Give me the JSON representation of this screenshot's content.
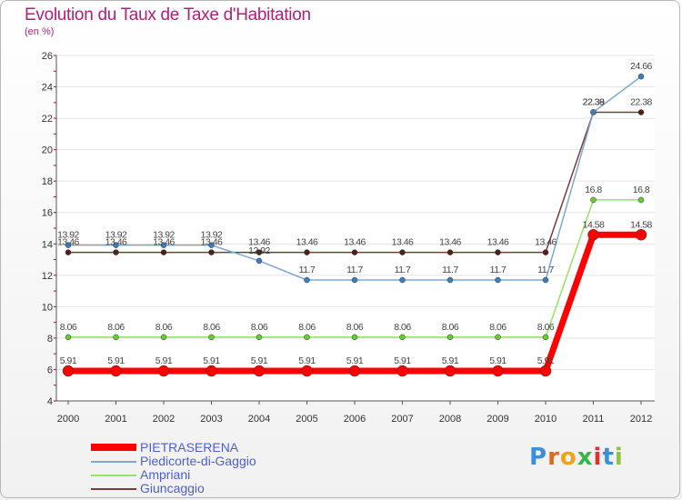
{
  "title": "Evolution du Taux de Taxe d'Habitation",
  "subtitle": "(en %)",
  "brand": [
    "P",
    "r",
    "o",
    "x",
    "i",
    "t",
    "i"
  ],
  "brand_colors": [
    "#3a8fd8",
    "#e06a1f",
    "#f2a31a",
    "#3bb54a",
    "#e0312e",
    "#3a8fd8",
    "#8bc53f"
  ],
  "chart_data": {
    "type": "line",
    "title": "Evolution du Taux de Taxe d'Habitation",
    "ylabel": "(en %)",
    "ylim": [
      4,
      26
    ],
    "yticks": [
      4,
      6,
      8,
      10,
      12,
      14,
      16,
      18,
      20,
      22,
      24,
      26
    ],
    "categories": [
      "2000",
      "2001",
      "2002",
      "2003",
      "2004",
      "2005",
      "2006",
      "2007",
      "2008",
      "2009",
      "2010",
      "2011",
      "2012"
    ],
    "series": [
      {
        "name": "PIETRASERENA",
        "color": "#ff0000",
        "values": [
          5.91,
          5.91,
          5.91,
          5.91,
          5.91,
          5.91,
          5.91,
          5.91,
          5.91,
          5.91,
          5.91,
          14.58,
          14.58
        ],
        "labels": [
          "5.91",
          "5.91",
          "5.91",
          "5.91",
          "5.91",
          "5.91",
          "5.91",
          "5.91",
          "5.91",
          "5.91",
          "5.91",
          "14.58",
          "14.58"
        ]
      },
      {
        "name": "Piedicorte-di-Gaggio",
        "color": "#7fa8d0",
        "values": [
          13.92,
          13.92,
          13.92,
          13.92,
          12.92,
          11.7,
          11.7,
          11.7,
          11.7,
          11.7,
          11.7,
          22.39,
          24.66
        ],
        "labels": [
          "13.92",
          "13.92",
          "13.92",
          "13.92",
          "12.92",
          "11.7",
          "11.7",
          "11.7",
          "11.7",
          "11.7",
          "11.7",
          "22.39",
          "24.66"
        ]
      },
      {
        "name": "Ampriani",
        "color": "#99e066",
        "values": [
          8.06,
          8.06,
          8.06,
          8.06,
          8.06,
          8.06,
          8.06,
          8.06,
          8.06,
          8.06,
          8.06,
          16.8,
          16.8
        ],
        "labels": [
          "8.06",
          "8.06",
          "8.06",
          "8.06",
          "8.06",
          "8.06",
          "8.06",
          "8.06",
          "8.06",
          "8.06",
          "8.06",
          "16.8",
          "16.8"
        ]
      },
      {
        "name": "Giuncaggio",
        "color": "#7a3b3b",
        "values": [
          13.46,
          13.46,
          13.46,
          13.46,
          13.46,
          13.46,
          13.46,
          13.46,
          13.46,
          13.46,
          13.46,
          22.38,
          22.38
        ],
        "labels": [
          "13.46",
          "13.46",
          "13.46",
          "13.46",
          "13.46",
          "13.46",
          "13.46",
          "13.46",
          "13.46",
          "13.46",
          "13.46",
          "22.38",
          "22.38"
        ]
      }
    ]
  }
}
